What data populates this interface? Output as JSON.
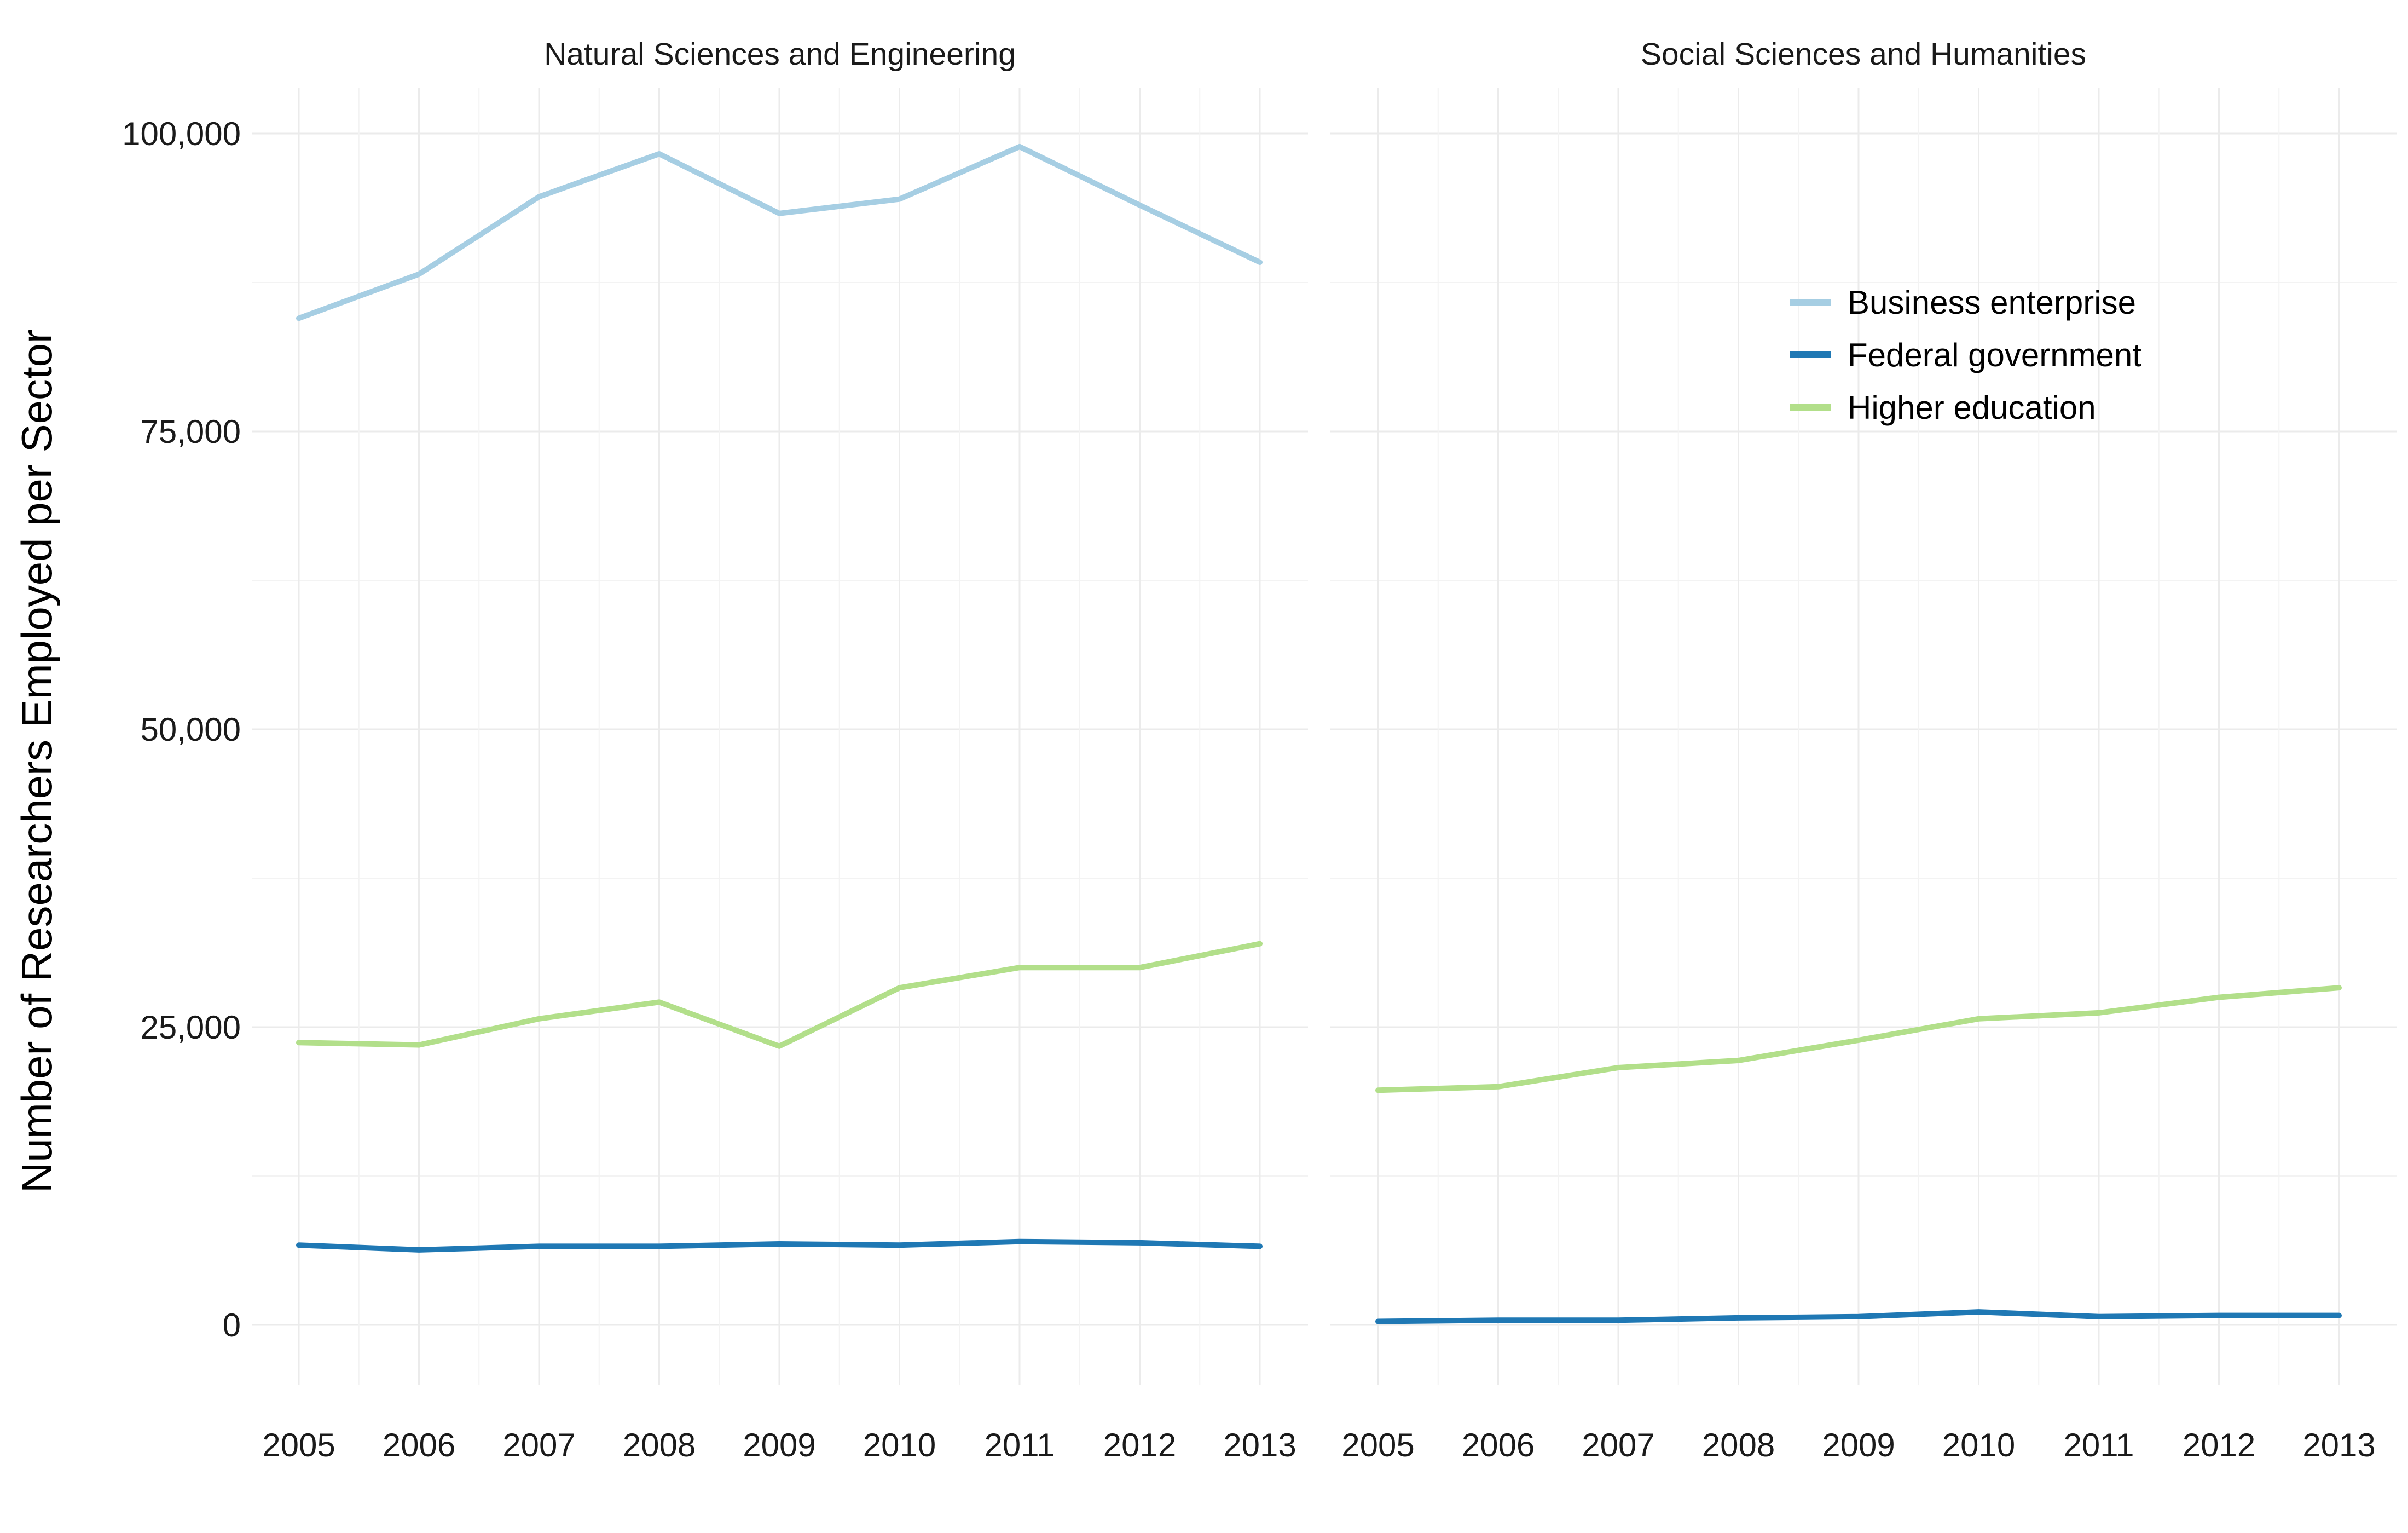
{
  "chart_data": {
    "type": "line",
    "ylabel": "Number of Researchers Employed per Sector",
    "ylim": [
      0,
      100000
    ],
    "y_ticks": [
      {
        "value": 0,
        "label": "0"
      },
      {
        "value": 25000,
        "label": "25,000"
      },
      {
        "value": 50000,
        "label": "50,000"
      },
      {
        "value": 75000,
        "label": "75,000"
      },
      {
        "value": 100000,
        "label": "100,000"
      }
    ],
    "x": [
      "2005",
      "2006",
      "2007",
      "2008",
      "2009",
      "2010",
      "2011",
      "2012",
      "2013"
    ],
    "legend": {
      "placement": "inside-top-right-of-second-panel",
      "entries": [
        {
          "name": "Business enterprise",
          "color": "#a6cee3"
        },
        {
          "name": "Federal government",
          "color": "#1f78b4"
        },
        {
          "name": "Higher education",
          "color": "#b2df8a"
        }
      ]
    },
    "grid": true,
    "facets": [
      {
        "title": "Natural Sciences and Engineering",
        "series": [
          {
            "name": "Business enterprise",
            "color": "#a6cee3",
            "values": [
              84500,
              88200,
              94700,
              98300,
              93300,
              94500,
              98900,
              94000,
              89200
            ]
          },
          {
            "name": "Federal government",
            "color": "#1f78b4",
            "values": [
              6700,
              6300,
              6600,
              6600,
              6800,
              6700,
              7000,
              6900,
              6600
            ]
          },
          {
            "name": "Higher education",
            "color": "#b2df8a",
            "values": [
              23700,
              23500,
              25700,
              27100,
              23400,
              28300,
              30000,
              30000,
              32000
            ]
          }
        ]
      },
      {
        "title": "Social Sciences and Humanities",
        "series": [
          {
            "name": "Federal government",
            "color": "#1f78b4",
            "values": [
              300,
              400,
              400,
              600,
              700,
              1100,
              700,
              800,
              800
            ]
          },
          {
            "name": "Higher education",
            "color": "#b2df8a",
            "values": [
              19700,
              20000,
              21600,
              22200,
              23900,
              25700,
              26200,
              27500,
              28300
            ]
          }
        ]
      }
    ]
  }
}
